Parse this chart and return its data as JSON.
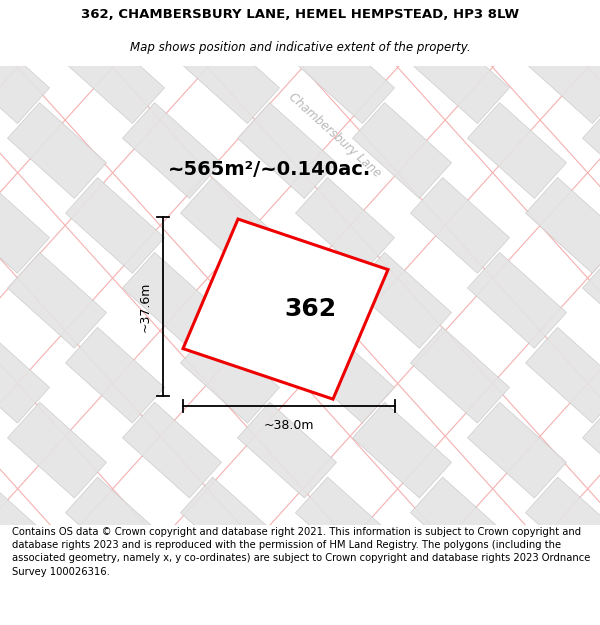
{
  "title_line1": "362, CHAMBERSBURY LANE, HEMEL HEMPSTEAD, HP3 8LW",
  "title_line2": "Map shows position and indicative extent of the property.",
  "footer_text": "Contains OS data © Crown copyright and database right 2021. This information is subject to Crown copyright and database rights 2023 and is reproduced with the permission of HM Land Registry. The polygons (including the associated geometry, namely x, y co-ordinates) are subject to Crown copyright and database rights 2023 Ordnance Survey 100026316.",
  "area_label": "~565m²/~0.140ac.",
  "plot_number": "362",
  "dim_width": "~38.0m",
  "dim_height": "~37.6m",
  "map_bg": "#f7f7f7",
  "tile_fill": "#e4e4e4",
  "tile_edge_dark": "#c8c8c8",
  "tile_edge_pink": "#f0a0a0",
  "plot_color": "#ee0000",
  "road_label": "Chambersbury Lane",
  "title_fontsize": 9.5,
  "subtitle_fontsize": 8.5,
  "footer_fontsize": 7.2,
  "area_fontsize": 14,
  "number_fontsize": 18,
  "dim_fontsize": 9
}
